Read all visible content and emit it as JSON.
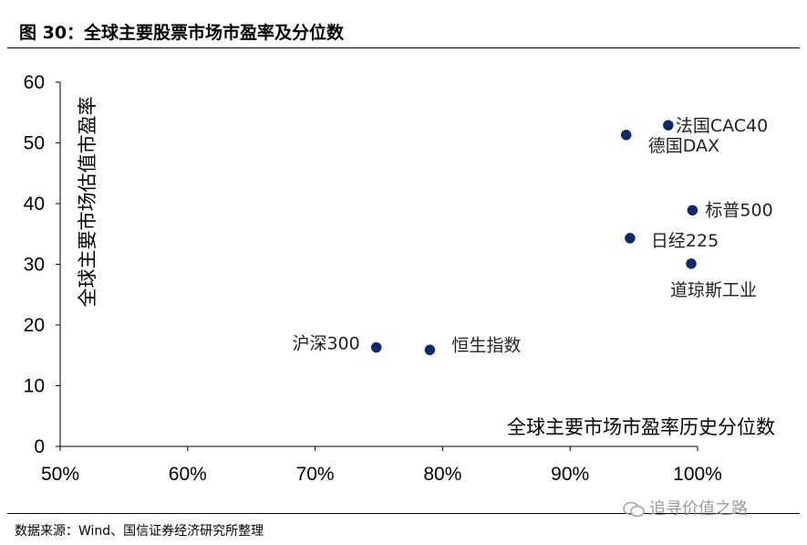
{
  "header": {
    "title": "图 30：全球主要股票市场市盈率及分位数"
  },
  "footer": {
    "source": "数据来源：Wind、国信证券经济研究所整理",
    "watermark": "追寻价值之路"
  },
  "colors": {
    "marker_fill": "#0d2b6b",
    "marker_edge": "#ffffff",
    "axis": "#000000"
  },
  "chart_data": {
    "type": "scatter",
    "title": "",
    "xlabel": "全球主要市场市盈率历史分位数",
    "ylabel": "全球主要市场估值市盈率",
    "xlim": [
      0.5,
      1.0
    ],
    "ylim": [
      0,
      60
    ],
    "x_ticks": [
      0.5,
      0.6,
      0.7,
      0.8,
      0.9,
      1.0
    ],
    "x_tick_labels": [
      "50%",
      "60%",
      "70%",
      "80%",
      "90%",
      "100%"
    ],
    "y_ticks": [
      0,
      10,
      20,
      30,
      40,
      50,
      60
    ],
    "y_tick_labels": [
      "0",
      "10",
      "20",
      "30",
      "40",
      "50",
      "60"
    ],
    "grid": false,
    "points": [
      {
        "label": "法国CAC40",
        "x": 0.977,
        "y": 52.9
      },
      {
        "label": "德国DAX",
        "x": 0.944,
        "y": 51.3
      },
      {
        "label": "标普500",
        "x": 0.996,
        "y": 38.9
      },
      {
        "label": "日经225",
        "x": 0.947,
        "y": 34.3
      },
      {
        "label": "道琼斯工业",
        "x": 0.995,
        "y": 30.1
      },
      {
        "label": "沪深300",
        "x": 0.748,
        "y": 16.3
      },
      {
        "label": "恒生指数",
        "x": 0.79,
        "y": 15.9
      }
    ]
  }
}
